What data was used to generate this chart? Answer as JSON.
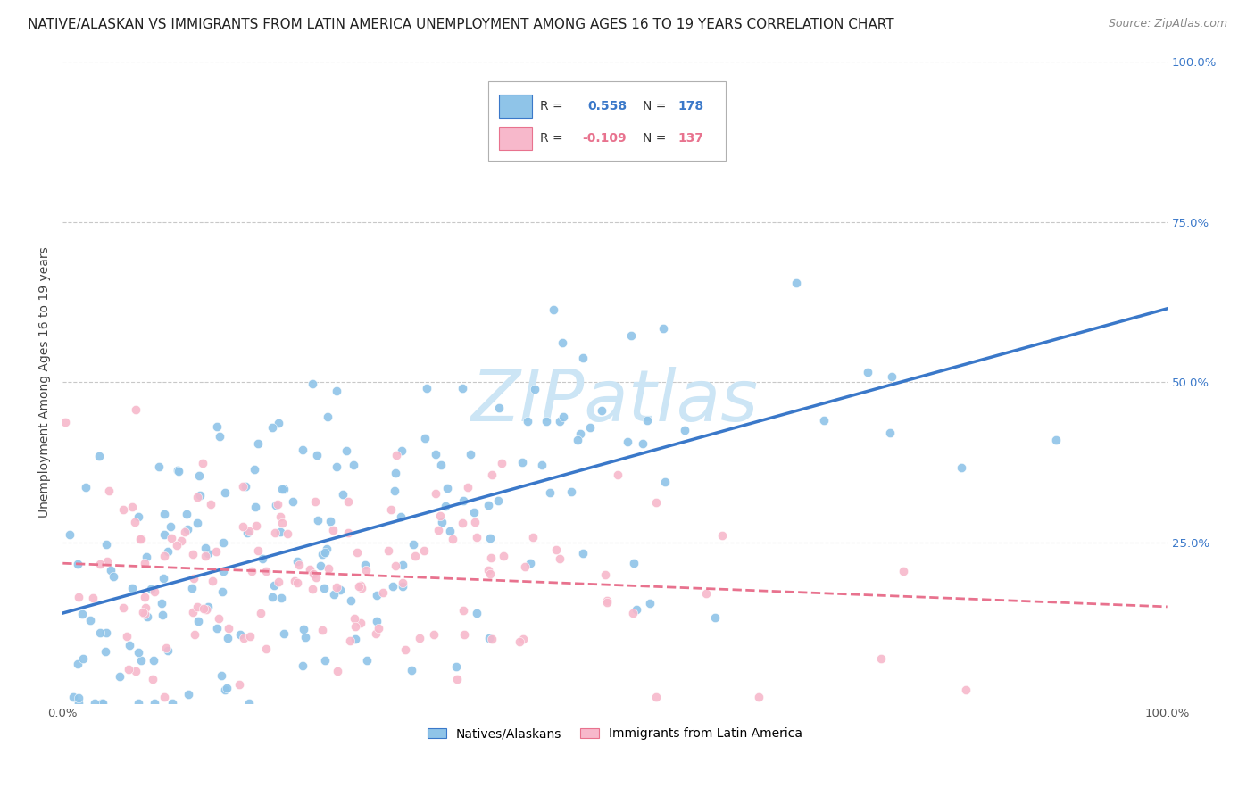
{
  "title": "NATIVE/ALASKAN VS IMMIGRANTS FROM LATIN AMERICA UNEMPLOYMENT AMONG AGES 16 TO 19 YEARS CORRELATION CHART",
  "source": "Source: ZipAtlas.com",
  "ylabel": "Unemployment Among Ages 16 to 19 years",
  "blue_label": "Natives/Alaskans",
  "pink_label": "Immigrants from Latin America",
  "blue_R": 0.558,
  "blue_N": 178,
  "pink_R": -0.109,
  "pink_N": 137,
  "xlim": [
    0.0,
    1.0
  ],
  "ylim": [
    0.0,
    1.0
  ],
  "xticks": [
    0.0,
    0.25,
    0.5,
    0.75,
    1.0
  ],
  "yticks": [
    0.0,
    0.25,
    0.5,
    0.75,
    1.0
  ],
  "xticklabels": [
    "0.0%",
    "",
    "",
    "",
    "100.0%"
  ],
  "left_yticklabels": [
    "",
    "",
    "",
    "",
    ""
  ],
  "right_yticklabels": [
    "",
    "25.0%",
    "50.0%",
    "75.0%",
    "100.0%"
  ],
  "blue_color": "#8fc4e8",
  "pink_color": "#f7b8cb",
  "blue_line_color": "#3a78c9",
  "pink_line_color": "#e8728e",
  "background_color": "#ffffff",
  "grid_color": "#c8c8c8",
  "watermark_text": "ZIPatlas",
  "watermark_color": "#cce5f5",
  "title_fontsize": 11,
  "source_fontsize": 9,
  "axis_label_fontsize": 10,
  "tick_fontsize": 9.5
}
